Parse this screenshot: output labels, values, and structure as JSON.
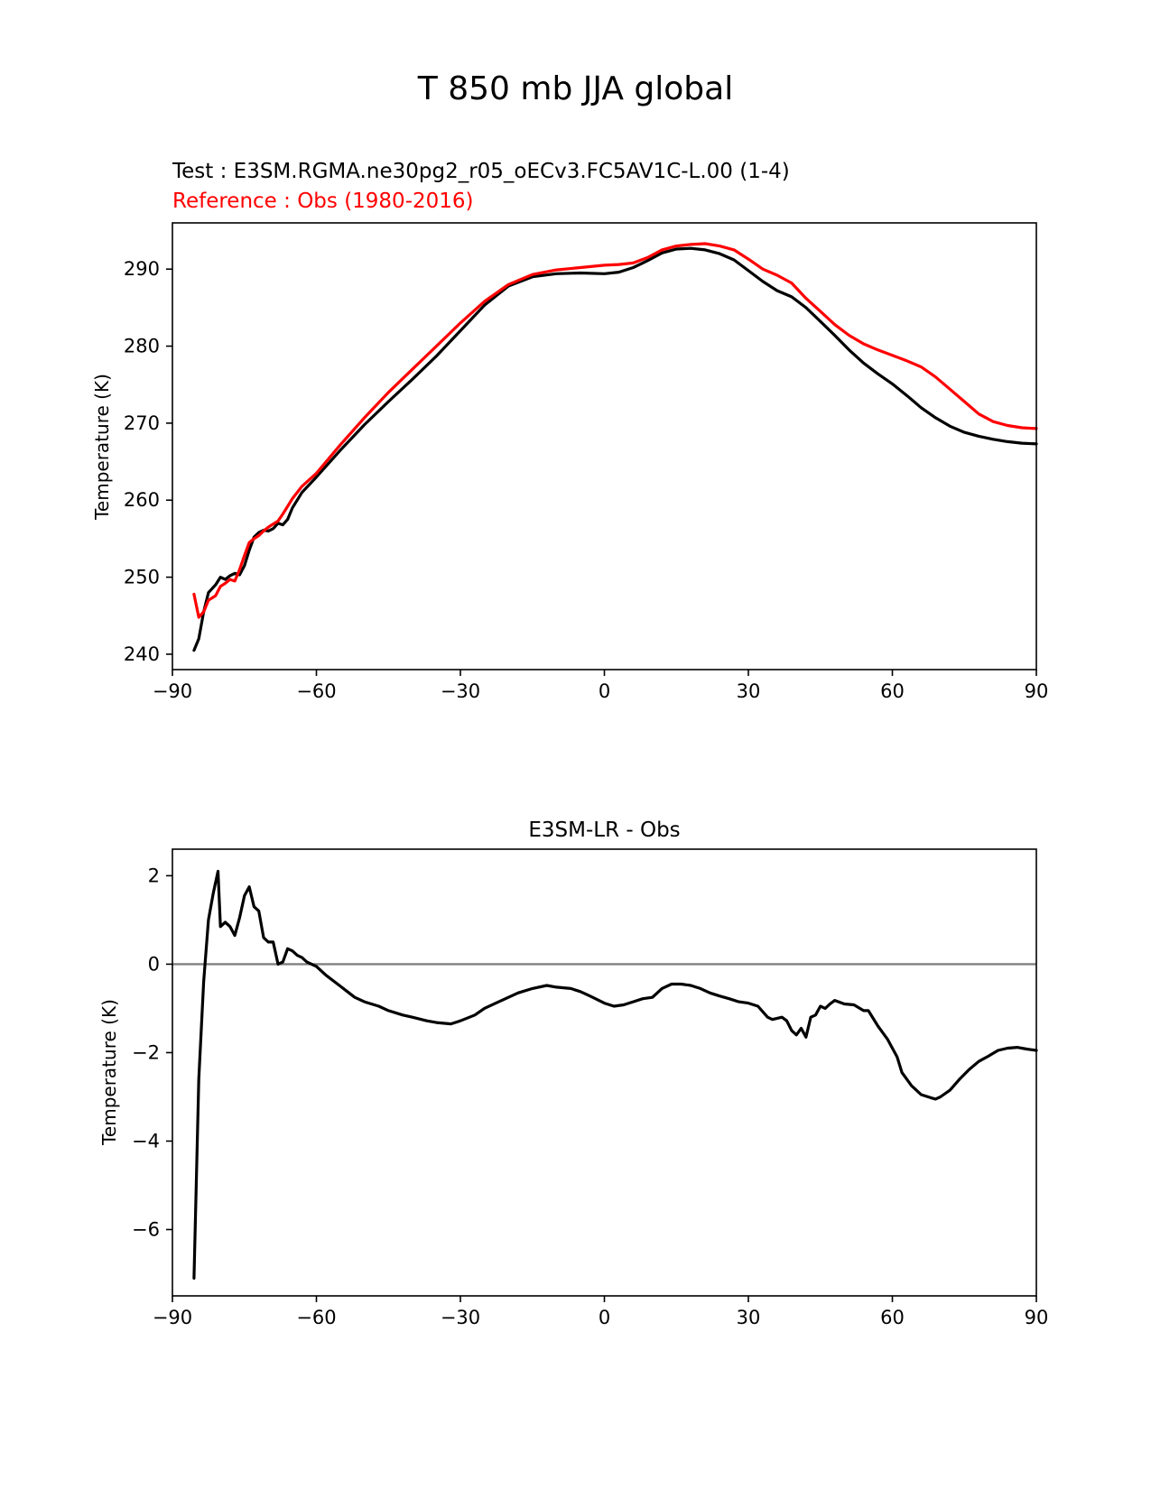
{
  "figure": {
    "title": "T 850 mb JJA global",
    "test_label": "Test : E3SM.RGMA.ne30pg2_r05_oECv3.FC5AV1C-L.00 (1-4)",
    "reference_label": "Reference : Obs (1980-2016)",
    "colors": {
      "test": "#000000",
      "reference": "#ff0000",
      "zero_line": "#808080",
      "axes": "#000000"
    }
  },
  "chart_data": [
    {
      "type": "line",
      "title": "",
      "xlabel": "",
      "ylabel": "Temperature (K)",
      "xlim": [
        -90,
        90
      ],
      "ylim": [
        238,
        296
      ],
      "xticks": [
        -90,
        -60,
        -30,
        0,
        30,
        60,
        90
      ],
      "xtick_labels": [
        "−90",
        "−60",
        "−30",
        "0",
        "30",
        "60",
        "90"
      ],
      "yticks": [
        240,
        250,
        260,
        270,
        280,
        290
      ],
      "ytick_labels": [
        "240",
        "250",
        "260",
        "270",
        "280",
        "290"
      ],
      "series": [
        {
          "name": "Test",
          "color": "#000000",
          "x": [
            -85.5,
            -84.5,
            -83.5,
            -82.5,
            -81,
            -80,
            -79,
            -78,
            -77,
            -76,
            -75,
            -74,
            -73,
            -72,
            -71,
            -70,
            -69,
            -68,
            -67,
            -66,
            -65,
            -63,
            -60,
            -55,
            -50,
            -45,
            -40,
            -35,
            -30,
            -25,
            -20,
            -15,
            -10,
            -5,
            0,
            3,
            6,
            9,
            12,
            15,
            18,
            21,
            24,
            27,
            30,
            33,
            36,
            39,
            42,
            45,
            48,
            51,
            54,
            57,
            60,
            63,
            66,
            69,
            72,
            75,
            78,
            81,
            84,
            87,
            90
          ],
          "y": [
            240.5,
            242,
            245.5,
            248,
            249,
            250,
            249.7,
            250.2,
            250.5,
            250.3,
            251.5,
            253.5,
            255.2,
            255.8,
            256.1,
            256,
            256.3,
            257,
            256.8,
            257.5,
            259,
            261,
            263,
            266.5,
            269.8,
            272.8,
            275.7,
            278.7,
            282,
            285.3,
            287.8,
            289,
            289.4,
            289.5,
            289.4,
            289.6,
            290.2,
            291.1,
            292.1,
            292.6,
            292.7,
            292.5,
            292,
            291.2,
            289.8,
            288.4,
            287.2,
            286.4,
            285,
            283.2,
            281.4,
            279.5,
            277.8,
            276.4,
            275.1,
            273.6,
            272,
            270.7,
            269.6,
            268.8,
            268.3,
            267.9,
            267.6,
            267.4,
            267.3
          ]
        },
        {
          "name": "Obs",
          "color": "#ff0000",
          "x": [
            -85.5,
            -84.5,
            -83.5,
            -82.5,
            -81,
            -80,
            -79,
            -78,
            -77,
            -76,
            -75,
            -74,
            -73,
            -72,
            -71,
            -70,
            -69,
            -68,
            -67,
            -66,
            -65,
            -63,
            -60,
            -55,
            -50,
            -45,
            -40,
            -35,
            -30,
            -25,
            -20,
            -15,
            -10,
            -5,
            0,
            3,
            6,
            9,
            12,
            15,
            18,
            21,
            24,
            27,
            30,
            33,
            36,
            39,
            42,
            45,
            48,
            51,
            54,
            57,
            60,
            63,
            66,
            69,
            72,
            75,
            78,
            81,
            84,
            87,
            90
          ],
          "y": [
            247.8,
            244.8,
            245.5,
            247,
            247.6,
            248.8,
            249.2,
            249.7,
            249.5,
            251,
            252.8,
            254.5,
            255,
            255.4,
            256,
            256.5,
            256.9,
            257.3,
            258.2,
            259.2,
            260.2,
            261.8,
            263.5,
            267.2,
            270.7,
            274,
            277,
            280,
            283,
            285.8,
            288,
            289.3,
            289.9,
            290.2,
            290.5,
            290.6,
            290.8,
            291.5,
            292.5,
            293,
            293.2,
            293.3,
            293,
            292.5,
            291.3,
            290,
            289.2,
            288.2,
            286.2,
            284.5,
            282.8,
            281.4,
            280.3,
            279.5,
            278.8,
            278.1,
            277.3,
            276,
            274.4,
            272.8,
            271.2,
            270.2,
            269.7,
            269.4,
            269.3
          ]
        }
      ]
    },
    {
      "type": "line",
      "title": "E3SM-LR - Obs",
      "xlabel": "",
      "ylabel": "Temperature (K)",
      "xlim": [
        -90,
        90
      ],
      "ylim": [
        -7.5,
        2.6
      ],
      "xticks": [
        -90,
        -60,
        -30,
        0,
        30,
        60,
        90
      ],
      "xtick_labels": [
        "−90",
        "−60",
        "−30",
        "0",
        "30",
        "60",
        "90"
      ],
      "yticks": [
        -6,
        -4,
        -2,
        0,
        2
      ],
      "ytick_labels": [
        "−6",
        "−4",
        "−2",
        "0",
        "2"
      ],
      "zero_line": 0,
      "series": [
        {
          "name": "E3SM-LR - Obs",
          "color": "#000000",
          "x": [
            -85.5,
            -84.5,
            -83.5,
            -82.5,
            -81.5,
            -80.5,
            -80,
            -79,
            -78,
            -77,
            -76,
            -75,
            -74,
            -73,
            -72,
            -71,
            -70,
            -69,
            -68,
            -67,
            -66,
            -65,
            -64,
            -63,
            -62,
            -60,
            -58,
            -55,
            -52,
            -50,
            -47,
            -45,
            -42,
            -40,
            -37,
            -35,
            -32,
            -30,
            -27,
            -25,
            -22,
            -20,
            -18,
            -15,
            -12,
            -10,
            -7,
            -5,
            -3,
            0,
            2,
            4,
            6,
            8,
            10,
            12,
            14,
            16,
            18,
            20,
            22,
            24,
            26,
            28,
            30,
            32,
            34,
            35,
            37,
            38,
            39,
            40,
            41,
            42,
            43,
            44,
            45,
            46,
            47,
            48,
            50,
            52,
            54,
            55,
            57,
            59,
            61,
            62,
            64,
            66,
            68,
            69,
            70,
            72,
            74,
            76,
            78,
            80,
            82,
            84,
            86,
            88,
            90
          ],
          "y": [
            -7.1,
            -2.6,
            -0.4,
            1,
            1.6,
            2.1,
            0.85,
            0.95,
            0.85,
            0.65,
            1.05,
            1.55,
            1.75,
            1.3,
            1.2,
            0.6,
            0.5,
            0.5,
            0,
            0.05,
            0.35,
            0.3,
            0.2,
            0.15,
            0.05,
            -0.05,
            -0.25,
            -0.5,
            -0.75,
            -0.85,
            -0.95,
            -1.05,
            -1.15,
            -1.2,
            -1.28,
            -1.32,
            -1.35,
            -1.28,
            -1.15,
            -1,
            -0.85,
            -0.75,
            -0.65,
            -0.55,
            -0.48,
            -0.52,
            -0.55,
            -0.62,
            -0.72,
            -0.88,
            -0.95,
            -0.92,
            -0.85,
            -0.78,
            -0.75,
            -0.55,
            -0.45,
            -0.45,
            -0.48,
            -0.55,
            -0.65,
            -0.72,
            -0.78,
            -0.85,
            -0.88,
            -0.95,
            -1.2,
            -1.25,
            -1.2,
            -1.28,
            -1.5,
            -1.6,
            -1.45,
            -1.65,
            -1.2,
            -1.15,
            -0.95,
            -1,
            -0.9,
            -0.82,
            -0.9,
            -0.92,
            -1.05,
            -1.05,
            -1.4,
            -1.7,
            -2.1,
            -2.45,
            -2.75,
            -2.95,
            -3.02,
            -3.05,
            -3,
            -2.85,
            -2.6,
            -2.38,
            -2.2,
            -2.08,
            -1.95,
            -1.9,
            -1.88,
            -1.92,
            -1.95
          ]
        }
      ]
    }
  ]
}
